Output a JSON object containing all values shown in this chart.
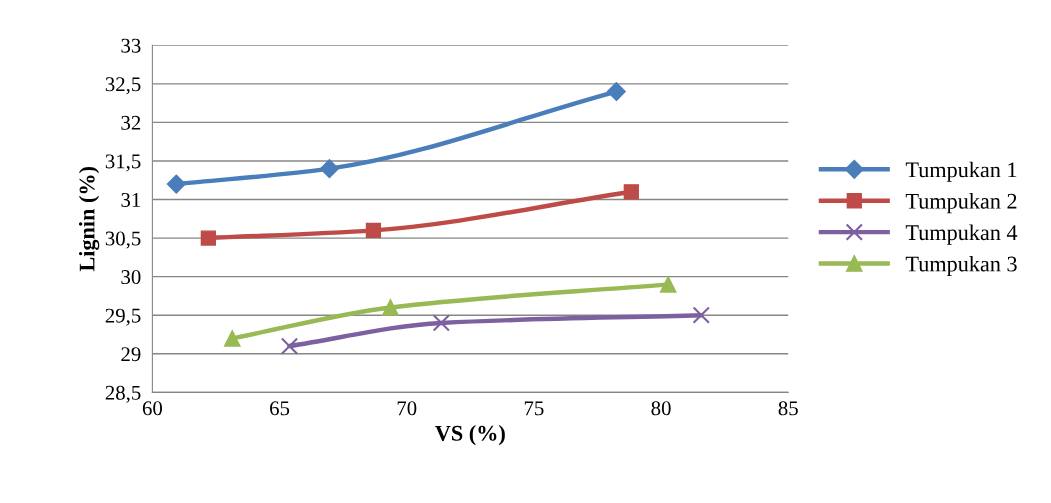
{
  "chart_data": {
    "type": "line",
    "xlabel": "VS (%)",
    "ylabel": "Lignin (%)",
    "xlim": [
      60,
      85
    ],
    "xticks": [
      60,
      65,
      70,
      75,
      80,
      85
    ],
    "ylim": [
      28.5,
      33
    ],
    "yticks": [
      {
        "value": 28.5,
        "label": "28,5"
      },
      29,
      {
        "value": 29.5,
        "label": "29,5"
      },
      30,
      {
        "value": 30.5,
        "label": "30,5"
      },
      31,
      {
        "value": 31.5,
        "label": "31,5"
      },
      32,
      {
        "value": 32.5,
        "label": "32,5"
      },
      33
    ],
    "grid": "y",
    "legend": "right",
    "series": [
      {
        "name": "Tumpukan 1",
        "color": "#4a7ebb",
        "marker": "diamond",
        "x": [
          60.94,
          66.96,
          78.24
        ],
        "values": [
          31.2,
          31.4,
          32.4
        ]
      },
      {
        "name": "Tumpukan 2",
        "color": "#be4b48",
        "marker": "square",
        "x": [
          62.2,
          68.69,
          78.83
        ],
        "values": [
          30.5,
          30.6,
          31.1
        ]
      },
      {
        "name": "Tumpukan 4",
        "color": "#7d60a0",
        "marker": "cross",
        "x": [
          65.39,
          71.36,
          81.58
        ],
        "values": [
          29.1,
          29.4,
          29.5
        ]
      },
      {
        "name": "Tumpukan 3",
        "color": "#98b954",
        "marker": "triangle",
        "x": [
          63.14,
          69.36,
          80.28
        ],
        "values": [
          29.2,
          29.6,
          29.9
        ]
      }
    ]
  }
}
